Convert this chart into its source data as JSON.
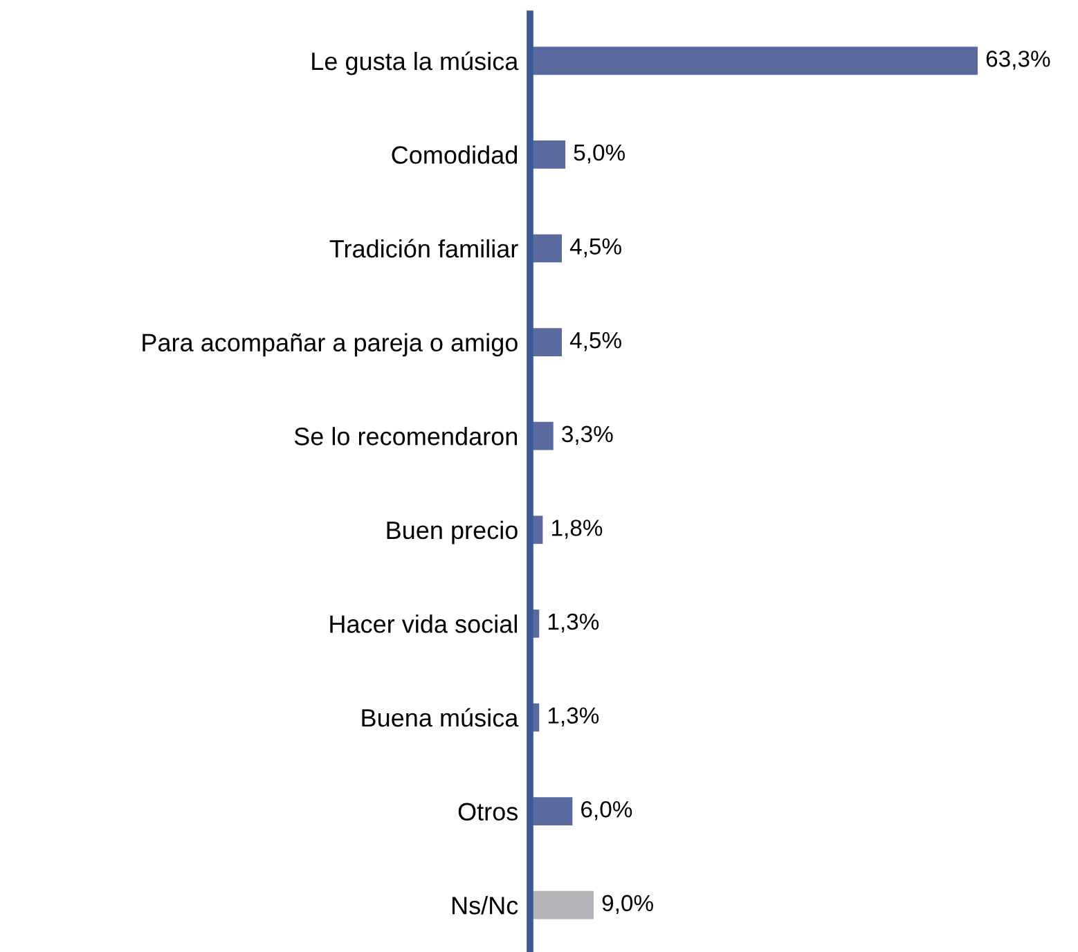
{
  "chart_data": {
    "type": "bar",
    "orientation": "horizontal",
    "categories": [
      "Le gusta la música",
      "Comodidad",
      "Tradición familiar",
      "Para acompañar a pareja o amigo",
      "Se lo recomendaron",
      "Buen precio",
      "Hacer vida social",
      "Buena música",
      "Otros",
      "Ns/Nc"
    ],
    "values": [
      63.3,
      5.0,
      4.5,
      4.5,
      3.3,
      1.8,
      1.3,
      1.3,
      6.0,
      9.0
    ],
    "value_labels": [
      "63,3%",
      "5,0%",
      "4,5%",
      "4,5%",
      "3,3%",
      "1,8%",
      "1,3%",
      "1,3%",
      "6,0%",
      "9,0%"
    ],
    "colors": [
      "#5a6a9e",
      "#5a6a9e",
      "#5a6a9e",
      "#5a6a9e",
      "#5a6a9e",
      "#5a6a9e",
      "#5a6a9e",
      "#5a6a9e",
      "#5a6a9e",
      "#b4b4b8"
    ],
    "grid": false,
    "legend": false
  }
}
